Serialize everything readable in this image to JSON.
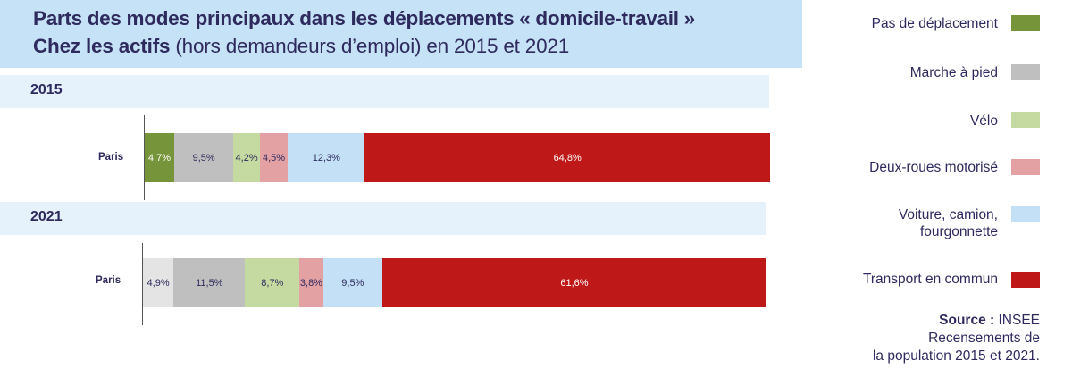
{
  "chart_data": {
    "type": "bar",
    "orientation": "horizontal",
    "stacked": true,
    "percent": true,
    "title_bold": "Parts des modes principaux dans les déplacements « domicile-travail »",
    "subtitle_bold": "Chez les actifs",
    "subtitle_rest": " (hors demandeurs d’emploi) en 2015 et 2021",
    "categories": [
      "Pas de déplacement",
      "Marche à pied",
      "Vélo",
      "Deux-roues motorisé",
      "Voiture, camion, fourgonnette",
      "Transport en commun"
    ],
    "colors": [
      "#76953a",
      "#bfbfbf",
      "#c4daa0",
      "#e4a1a4",
      "#c3e0f6",
      "#be1818"
    ],
    "label_colors": [
      "#ffffff",
      "#2e2a5e",
      "#2e2a5e",
      "#2e2a5e",
      "#2e2a5e",
      "#ffffff"
    ],
    "panels": [
      {
        "year": "2015",
        "row_label": "Paris",
        "values": [
          4.7,
          9.5,
          4.2,
          4.5,
          12.3,
          64.8
        ],
        "labels": [
          "4,7%",
          "9,5%",
          "4,2%",
          "4,5%",
          "12,3%",
          "64,8%"
        ]
      },
      {
        "year": "2021",
        "row_label": "Paris",
        "values": [
          4.9,
          11.5,
          8.7,
          3.8,
          9.5,
          61.6
        ],
        "labels": [
          "4,9%",
          "11,5%",
          "8,7%",
          "3,8%",
          "9,5%",
          "61,6%"
        ],
        "first_color_override": "#e4e4e4",
        "first_label_color_override": "#2e2a5e"
      }
    ],
    "legend_position": "right"
  },
  "legend": {
    "items": [
      "Pas de déplacement",
      "Marche à pied",
      "Vélo",
      "Deux-roues motorisé",
      "Voiture, camion,",
      "fourgonnette",
      "Transport en commun"
    ]
  },
  "source": {
    "label": "Source :",
    "text1": " INSEE",
    "text2": "Recensements de",
    "text3": "la population 2015 et 2021."
  }
}
